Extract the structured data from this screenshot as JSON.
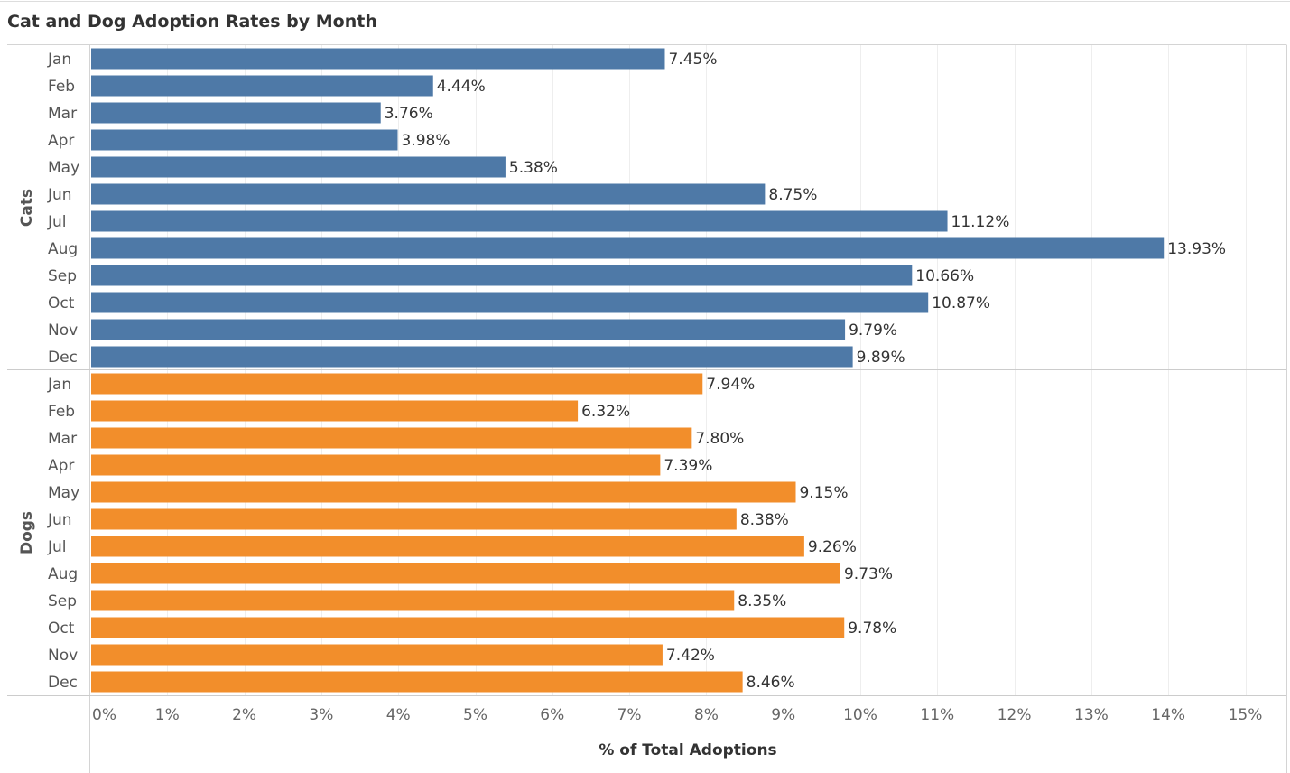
{
  "chart_data": {
    "type": "bar",
    "orientation": "horizontal",
    "title": "Cat and Dog Adoption Rates by Month",
    "xlabel": "% of Total Adoptions",
    "xlim": [
      0,
      15.5
    ],
    "xticks": [
      0,
      1,
      2,
      3,
      4,
      5,
      6,
      7,
      8,
      9,
      10,
      11,
      12,
      13,
      14,
      15
    ],
    "xtick_labels": [
      "0%",
      "1%",
      "2%",
      "3%",
      "4%",
      "5%",
      "6%",
      "7%",
      "8%",
      "9%",
      "10%",
      "11%",
      "12%",
      "13%",
      "14%",
      "15%"
    ],
    "grid": true,
    "categories": [
      "Jan",
      "Feb",
      "Mar",
      "Apr",
      "May",
      "Jun",
      "Jul",
      "Aug",
      "Sep",
      "Oct",
      "Nov",
      "Dec"
    ],
    "groups": [
      {
        "name": "Cats",
        "color": "#4e79a7",
        "values": [
          7.45,
          4.44,
          3.76,
          3.98,
          5.38,
          8.75,
          11.12,
          13.93,
          10.66,
          10.87,
          9.79,
          9.89
        ],
        "labels": [
          "7.45%",
          "4.44%",
          "3.76%",
          "3.98%",
          "5.38%",
          "8.75%",
          "11.12%",
          "13.93%",
          "10.66%",
          "10.87%",
          "9.79%",
          "9.89%"
        ]
      },
      {
        "name": "Dogs",
        "color": "#f28e2b",
        "values": [
          7.94,
          6.32,
          7.8,
          7.39,
          9.15,
          8.38,
          9.26,
          9.73,
          8.35,
          9.78,
          7.42,
          8.46
        ],
        "labels": [
          "7.94%",
          "6.32%",
          "7.80%",
          "7.39%",
          "9.15%",
          "8.38%",
          "9.26%",
          "9.73%",
          "8.35%",
          "9.78%",
          "7.42%",
          "8.46%"
        ]
      }
    ]
  }
}
